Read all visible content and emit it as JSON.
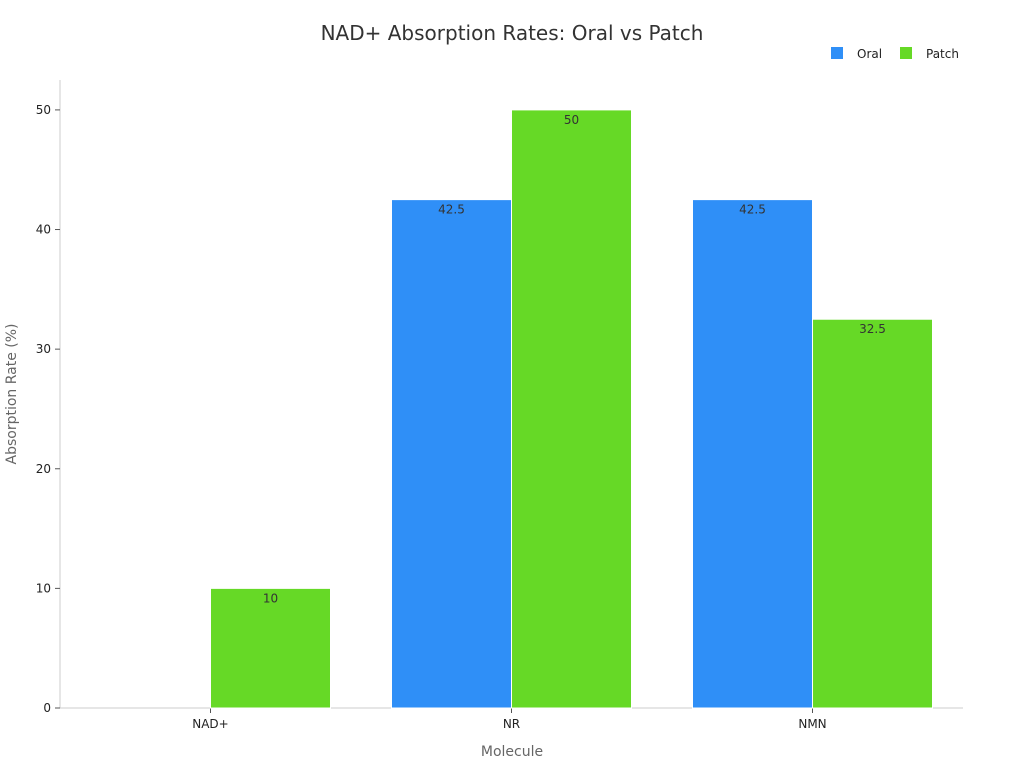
{
  "chart_data": {
    "type": "bar",
    "title": "NAD+ Absorption Rates: Oral vs Patch",
    "xlabel": "Molecule",
    "ylabel": "Absorption Rate (%)",
    "categories": [
      "NAD+",
      "NR",
      "NMN"
    ],
    "series": [
      {
        "name": "Oral",
        "color": "#2f8ff7",
        "values": [
          null,
          42.5,
          42.5
        ]
      },
      {
        "name": "Patch",
        "color": "#66d926",
        "values": [
          10,
          50,
          32.5
        ]
      }
    ],
    "ylim": [
      0,
      52.5
    ],
    "yticks": [
      0,
      10,
      20,
      30,
      40,
      50
    ],
    "grid": false,
    "legend_position": "top-right"
  }
}
